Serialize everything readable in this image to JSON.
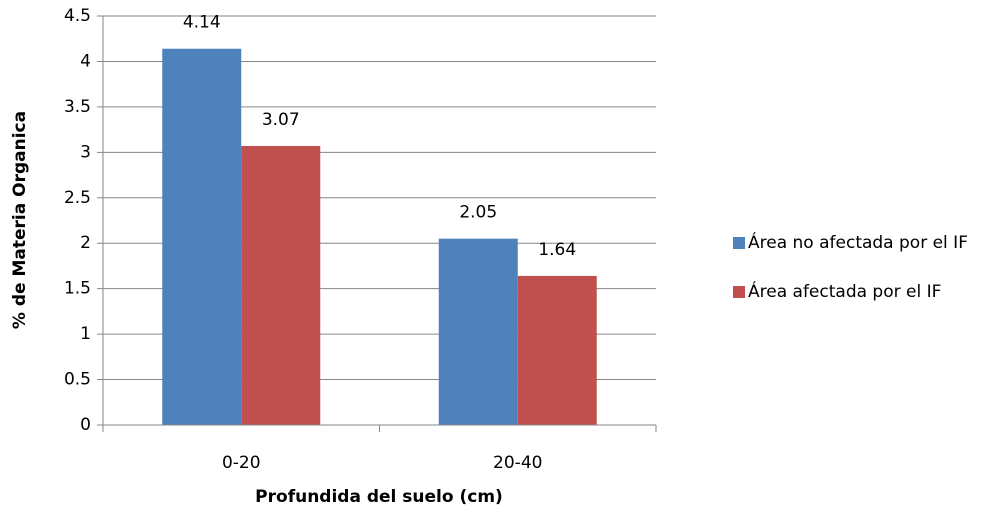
{
  "chart_data": {
    "type": "bar",
    "xlabel": "Profundida del suelo (cm)",
    "ylabel": "% de Materia Organica",
    "categories": [
      "0-20",
      "20-40"
    ],
    "series": [
      {
        "name": "Área no afectada por el IF",
        "color": "#4f81bd",
        "values": [
          4.14,
          2.05
        ]
      },
      {
        "name": "Área afectada por el IF",
        "color": "#c0504d",
        "values": [
          3.07,
          1.64
        ]
      }
    ],
    "ylim": [
      0,
      4.5
    ],
    "yticks": [
      0,
      0.5,
      1,
      1.5,
      2,
      2.5,
      3,
      3.5,
      4,
      4.5
    ],
    "grid": true,
    "legend": "right"
  }
}
